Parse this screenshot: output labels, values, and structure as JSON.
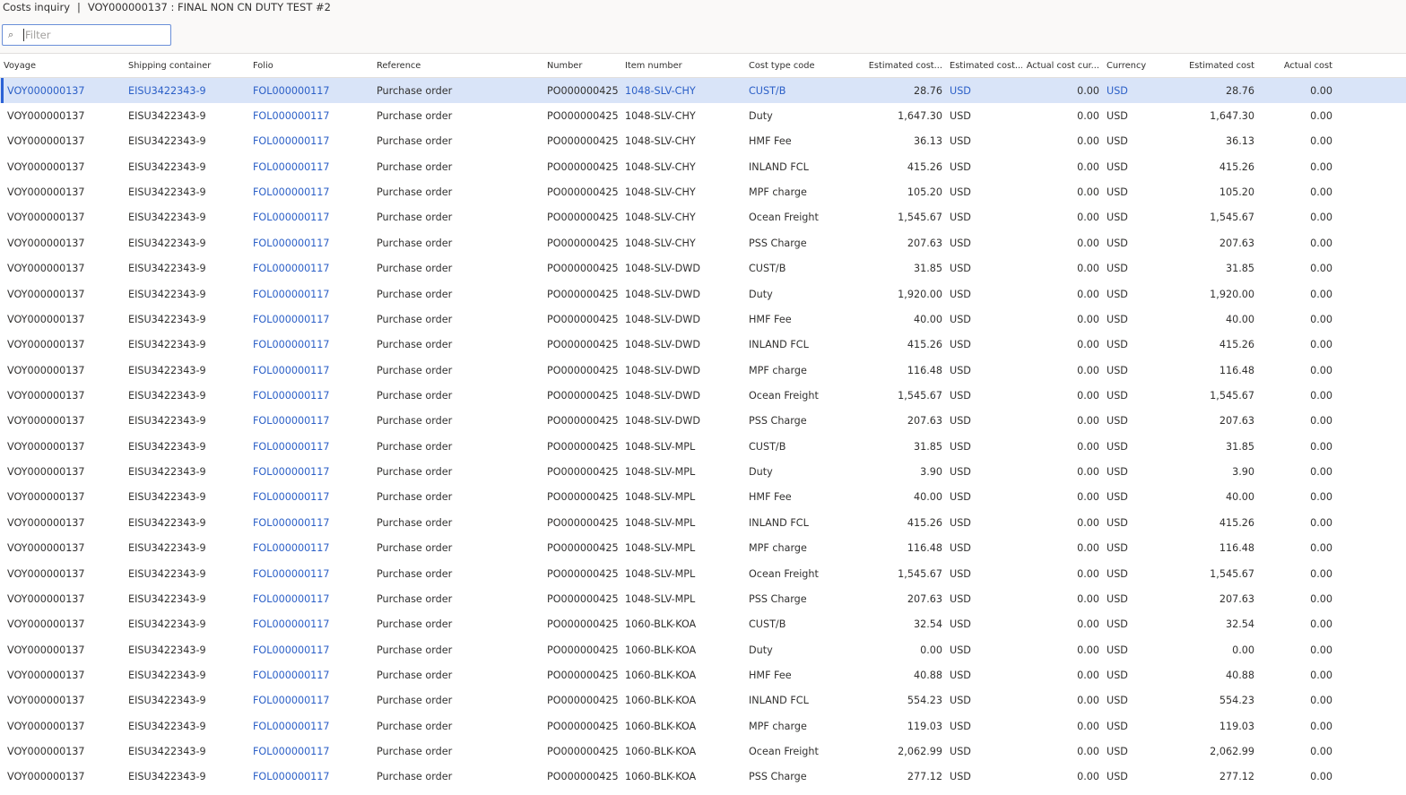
{
  "header": {
    "page": "Costs inquiry",
    "separator": "|",
    "record": "VOY000000137 : FINAL NON CN DUTY TEST #2"
  },
  "filter": {
    "placeholder": "Filter",
    "icon": "search-icon"
  },
  "columns": [
    "Voyage",
    "Shipping container",
    "Folio",
    "Reference",
    "Number",
    "Item number",
    "Cost type code",
    "Estimated cost...",
    "Estimated cost...",
    "Actual cost cur...",
    "Currency",
    "Estimated cost",
    "Actual cost"
  ],
  "colors": {
    "selected_row": "#d9e4f8",
    "link": "#2b5fc7",
    "accent": "#2b62d6"
  },
  "common": {
    "voyage": "VOY000000137",
    "container": "EISU3422343-9",
    "folio": "FOL000000117",
    "reference": "Purchase order",
    "number": "PO000000425",
    "currency": "USD",
    "actual": "0.00"
  },
  "selected_row": 0,
  "rows": [
    {
      "item": "1048-SLV-CHY",
      "cost_type": "CUST/B",
      "est": "28.76"
    },
    {
      "item": "1048-SLV-CHY",
      "cost_type": "Duty",
      "est": "1,647.30"
    },
    {
      "item": "1048-SLV-CHY",
      "cost_type": "HMF Fee",
      "est": "36.13"
    },
    {
      "item": "1048-SLV-CHY",
      "cost_type": "INLAND FCL",
      "est": "415.26"
    },
    {
      "item": "1048-SLV-CHY",
      "cost_type": "MPF charge",
      "est": "105.20"
    },
    {
      "item": "1048-SLV-CHY",
      "cost_type": "Ocean Freight",
      "est": "1,545.67"
    },
    {
      "item": "1048-SLV-CHY",
      "cost_type": "PSS Charge",
      "est": "207.63"
    },
    {
      "item": "1048-SLV-DWD",
      "cost_type": "CUST/B",
      "est": "31.85"
    },
    {
      "item": "1048-SLV-DWD",
      "cost_type": "Duty",
      "est": "1,920.00"
    },
    {
      "item": "1048-SLV-DWD",
      "cost_type": "HMF Fee",
      "est": "40.00"
    },
    {
      "item": "1048-SLV-DWD",
      "cost_type": "INLAND FCL",
      "est": "415.26"
    },
    {
      "item": "1048-SLV-DWD",
      "cost_type": "MPF charge",
      "est": "116.48"
    },
    {
      "item": "1048-SLV-DWD",
      "cost_type": "Ocean Freight",
      "est": "1,545.67"
    },
    {
      "item": "1048-SLV-DWD",
      "cost_type": "PSS Charge",
      "est": "207.63"
    },
    {
      "item": "1048-SLV-MPL",
      "cost_type": "CUST/B",
      "est": "31.85"
    },
    {
      "item": "1048-SLV-MPL",
      "cost_type": "Duty",
      "est": "3.90"
    },
    {
      "item": "1048-SLV-MPL",
      "cost_type": "HMF Fee",
      "est": "40.00"
    },
    {
      "item": "1048-SLV-MPL",
      "cost_type": "INLAND FCL",
      "est": "415.26"
    },
    {
      "item": "1048-SLV-MPL",
      "cost_type": "MPF charge",
      "est": "116.48"
    },
    {
      "item": "1048-SLV-MPL",
      "cost_type": "Ocean Freight",
      "est": "1,545.67"
    },
    {
      "item": "1048-SLV-MPL",
      "cost_type": "PSS Charge",
      "est": "207.63"
    },
    {
      "item": "1060-BLK-KOA",
      "cost_type": "CUST/B",
      "est": "32.54"
    },
    {
      "item": "1060-BLK-KOA",
      "cost_type": "Duty",
      "est": "0.00"
    },
    {
      "item": "1060-BLK-KOA",
      "cost_type": "HMF Fee",
      "est": "40.88"
    },
    {
      "item": "1060-BLK-KOA",
      "cost_type": "INLAND FCL",
      "est": "554.23"
    },
    {
      "item": "1060-BLK-KOA",
      "cost_type": "MPF charge",
      "est": "119.03"
    },
    {
      "item": "1060-BLK-KOA",
      "cost_type": "Ocean Freight",
      "est": "2,062.99"
    },
    {
      "item": "1060-BLK-KOA",
      "cost_type": "PSS Charge",
      "est": "277.12"
    }
  ]
}
